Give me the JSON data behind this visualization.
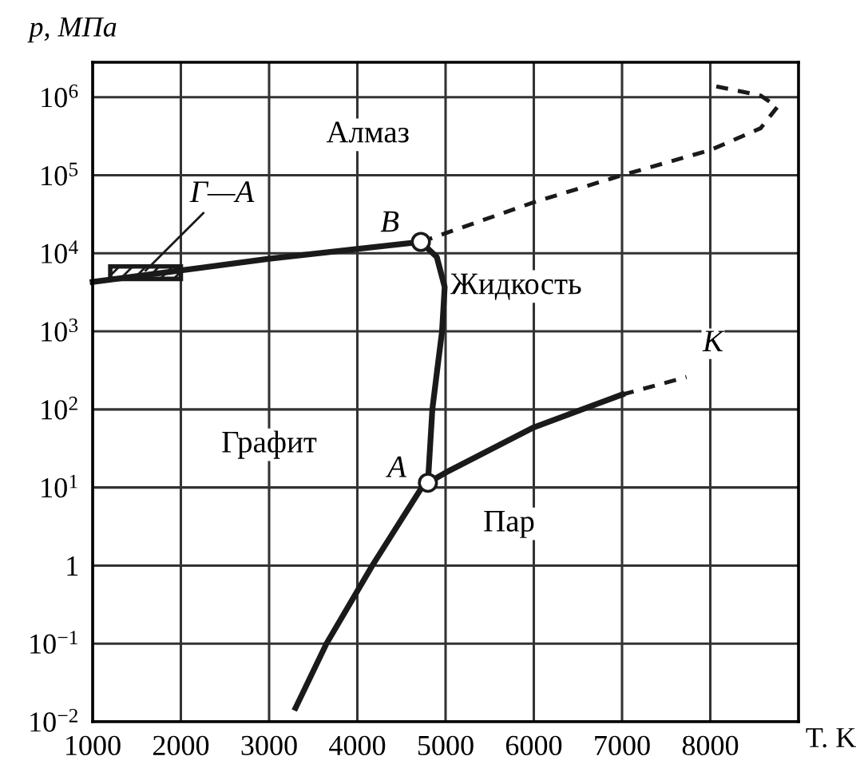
{
  "chart_data": {
    "type": "line",
    "xlabel": "T. K",
    "ylabel": "p, МПа",
    "log": "y",
    "grid": true,
    "legend": false,
    "xlim": [
      1000,
      9000
    ],
    "ylim": [
      0.01,
      2800000
    ],
    "xticks": [
      1000,
      2000,
      3000,
      4000,
      5000,
      6000,
      7000,
      8000
    ],
    "yticks": [
      {
        "value": 0.01,
        "label": "10$^{−2}$"
      },
      {
        "value": 0.1,
        "label": "10$^{−1}$"
      },
      1,
      {
        "value": 10,
        "label": "10$^{1}$"
      },
      {
        "value": 100,
        "label": "10$^{2}$"
      },
      {
        "value": 1000,
        "label": "10$^{3}$"
      },
      {
        "value": 10000,
        "label": "10$^{4}$"
      },
      {
        "value": 100000,
        "label": "10$^{5}$"
      },
      {
        "value": 1000000,
        "label": "10$^{6}$"
      }
    ],
    "series": [
      {
        "color": "#1a1a1a",
        "line_style": "solid",
        "x": [
          1000,
          3000,
          4720
        ],
        "values": [
          4300,
          8500,
          14000
        ]
      },
      {
        "color": "#1a1a1a",
        "line_style": "dashed",
        "x": [
          4720,
          6000,
          7000,
          8000,
          8570,
          8760,
          8570,
          7970
        ],
        "values": [
          14000,
          45000,
          100000,
          210000,
          400000,
          750000,
          1050000,
          1450000
        ]
      },
      {
        "color": "#1a1a1a",
        "line_style": "solid",
        "x": [
          4720,
          4900,
          4990,
          4960,
          4910,
          4850,
          4800
        ],
        "values": [
          14000,
          9000,
          3700,
          1000,
          355,
          100,
          11.5
        ]
      },
      {
        "color": "#1a1a1a",
        "line_style": "solid",
        "x": [
          3300,
          3650,
          4170,
          4730,
          4800
        ],
        "values": [
          0.015,
          0.1,
          1,
          10,
          11.5
        ]
      },
      {
        "color": "#1a1a1a",
        "line_style": "solid",
        "x": [
          4800,
          5000,
          6000,
          7000
        ],
        "values": [
          11.5,
          15.5,
          59,
          155
        ]
      },
      {
        "color": "#1a1a1a",
        "line_style": "dashed",
        "x": [
          7000,
          7730
        ],
        "values": [
          155,
          260
        ]
      },
      {
        "type": "scatter",
        "marker": "circle",
        "color": "#ffffff",
        "x": [
          4720,
          4800
        ],
        "values": [
          14000,
          11.5
        ]
      }
    ],
    "annotations": [
      "Алмаз",
      "Жидкость",
      "Графит",
      "Пар",
      {
        "text": "B",
        "x": 4720,
        "y": 14000
      },
      {
        "text": "A",
        "x": 4800,
        "y": 11.5
      },
      {
        "text": "K",
        "x": 7730,
        "y": 260
      },
      {
        "text": "Г—А",
        "x": 1600,
        "y": 6000
      }
    ]
  }
}
